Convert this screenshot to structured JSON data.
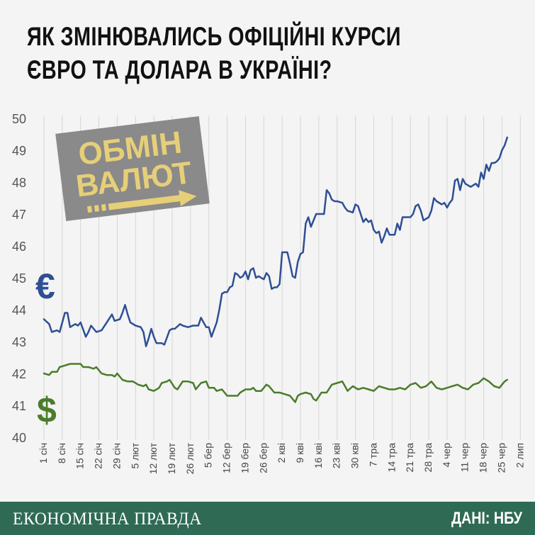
{
  "title": {
    "line1": "ЯК ЗМІНЮВАЛИСЬ ОФІЦІЙНІ КУРСИ",
    "line2": "ЄВРО ТА ДОЛАРА В УКРАЇНІ?"
  },
  "sign": {
    "line1": "ОБМІН",
    "line2": "ВАЛЮТ"
  },
  "footer": {
    "brand": "ЕКОНОМІЧНА ПРАВДА",
    "source": "ДАНІ: НБУ"
  },
  "colors": {
    "euro": "#2e4f94",
    "dollar": "#4a7c2a",
    "footer": "#2f6a55",
    "sign": "#8a8a8a",
    "sign_text": "#e6cf78"
  },
  "chart_data": {
    "type": "line",
    "title": "ЯК ЗМІНЮВАЛИСЬ ОФІЦІЙНІ КУРСИ ЄВРО ТА ДОЛАРА В УКРАЇНІ?",
    "xlabel": "",
    "ylabel": "",
    "ylim": [
      40,
      50
    ],
    "yticks": [
      40,
      41,
      42,
      43,
      44,
      45,
      46,
      47,
      48,
      49,
      50
    ],
    "grid": "vertical",
    "legend": "left (symbols € and $)",
    "x_tick_labels": [
      "1 січ",
      "8 січ",
      "15 січ",
      "22 січ",
      "29 січ",
      "5 лют",
      "12 лют",
      "19 лют",
      "26 лют",
      "5 бер",
      "12 бер",
      "19 бер",
      "26 бер",
      "2 кві",
      "9 кві",
      "16 кві",
      "23 кві",
      "30 кві",
      "7 тра",
      "14 тра",
      "21 тра",
      "28 тра",
      "4 чер",
      "11 чер",
      "18 чер",
      "25 чер",
      "2 лип"
    ],
    "x_day_range": [
      0,
      183
    ],
    "series": [
      {
        "name": "€",
        "points": [
          [
            0,
            43.7
          ],
          [
            2,
            43.55
          ],
          [
            3,
            43.3
          ],
          [
            5,
            43.35
          ],
          [
            6,
            43.3
          ],
          [
            8,
            43.9
          ],
          [
            9,
            43.9
          ],
          [
            10,
            43.45
          ],
          [
            12,
            43.55
          ],
          [
            13,
            43.5
          ],
          [
            14,
            43.6
          ],
          [
            16,
            43.15
          ],
          [
            17,
            43.3
          ],
          [
            18,
            43.5
          ],
          [
            20,
            43.3
          ],
          [
            22,
            43.35
          ],
          [
            24,
            43.6
          ],
          [
            26,
            43.85
          ],
          [
            27,
            43.65
          ],
          [
            29,
            43.7
          ],
          [
            30,
            43.9
          ],
          [
            31,
            44.15
          ],
          [
            32,
            43.85
          ],
          [
            33,
            43.6
          ],
          [
            35,
            43.5
          ],
          [
            37,
            43.45
          ],
          [
            38,
            43.3
          ],
          [
            39,
            42.85
          ],
          [
            40,
            43.1
          ],
          [
            41,
            43.4
          ],
          [
            42,
            43.15
          ],
          [
            43,
            42.95
          ],
          [
            45,
            42.95
          ],
          [
            46,
            42.9
          ],
          [
            48,
            43.35
          ],
          [
            49,
            43.4
          ],
          [
            50,
            43.4
          ],
          [
            52,
            43.55
          ],
          [
            53,
            43.5
          ],
          [
            55,
            43.45
          ],
          [
            57,
            43.5
          ],
          [
            59,
            43.5
          ],
          [
            60,
            43.75
          ],
          [
            62,
            43.45
          ],
          [
            63,
            43.45
          ],
          [
            64,
            43.15
          ],
          [
            66,
            43.6
          ],
          [
            67,
            44.0
          ],
          [
            68,
            44.5
          ],
          [
            69,
            44.55
          ],
          [
            70,
            44.55
          ],
          [
            71,
            44.7
          ],
          [
            72,
            44.75
          ],
          [
            73,
            45.15
          ],
          [
            74,
            45.1
          ],
          [
            75,
            45.0
          ],
          [
            76,
            45.05
          ],
          [
            77,
            45.2
          ],
          [
            78,
            44.95
          ],
          [
            79,
            45.25
          ],
          [
            80,
            45.3
          ],
          [
            81,
            45.0
          ],
          [
            82,
            45.05
          ],
          [
            84,
            44.95
          ],
          [
            85,
            45.15
          ],
          [
            86,
            45.05
          ],
          [
            87,
            44.65
          ],
          [
            88,
            44.7
          ],
          [
            89,
            44.7
          ],
          [
            90,
            44.8
          ],
          [
            91,
            45.8
          ],
          [
            92,
            45.8
          ],
          [
            93,
            45.8
          ],
          [
            94,
            45.45
          ],
          [
            95,
            45.05
          ],
          [
            96,
            45.0
          ],
          [
            97,
            45.5
          ],
          [
            98,
            45.75
          ],
          [
            99,
            45.8
          ],
          [
            100,
            46.7
          ],
          [
            101,
            46.9
          ],
          [
            102,
            46.6
          ],
          [
            103,
            46.8
          ],
          [
            104,
            47.0
          ],
          [
            106,
            47.0
          ],
          [
            107,
            47.0
          ],
          [
            108,
            47.75
          ],
          [
            109,
            47.65
          ],
          [
            110,
            47.45
          ],
          [
            111,
            47.4
          ],
          [
            112,
            47.4
          ],
          [
            114,
            47.35
          ],
          [
            115,
            47.2
          ],
          [
            116,
            47.1
          ],
          [
            118,
            47.05
          ],
          [
            119,
            47.3
          ],
          [
            120,
            47.25
          ],
          [
            121,
            47.0
          ],
          [
            122,
            46.75
          ],
          [
            123,
            46.85
          ],
          [
            124,
            46.75
          ],
          [
            125,
            46.8
          ],
          [
            126,
            46.5
          ],
          [
            127,
            46.4
          ],
          [
            128,
            46.45
          ],
          [
            129,
            46.1
          ],
          [
            130,
            46.3
          ],
          [
            131,
            46.55
          ],
          [
            132,
            46.35
          ],
          [
            134,
            46.35
          ],
          [
            135,
            46.7
          ],
          [
            136,
            46.5
          ],
          [
            137,
            46.9
          ],
          [
            138,
            46.9
          ],
          [
            140,
            46.9
          ],
          [
            141,
            47.0
          ],
          [
            142,
            47.25
          ],
          [
            143,
            47.3
          ],
          [
            144,
            47.1
          ],
          [
            145,
            46.8
          ],
          [
            147,
            46.9
          ],
          [
            148,
            47.1
          ],
          [
            149,
            47.5
          ],
          [
            150,
            47.4
          ],
          [
            152,
            47.3
          ],
          [
            153,
            47.35
          ],
          [
            154,
            47.2
          ],
          [
            155,
            47.35
          ],
          [
            156,
            47.45
          ],
          [
            157,
            48.05
          ],
          [
            158,
            48.1
          ],
          [
            159,
            47.75
          ],
          [
            160,
            48.1
          ],
          [
            161,
            47.95
          ],
          [
            163,
            47.85
          ],
          [
            165,
            47.95
          ],
          [
            166,
            47.85
          ],
          [
            167,
            48.3
          ],
          [
            168,
            48.1
          ],
          [
            169,
            48.55
          ],
          [
            170,
            48.35
          ],
          [
            171,
            48.6
          ],
          [
            172,
            48.6
          ],
          [
            173,
            48.65
          ],
          [
            174,
            48.75
          ],
          [
            175,
            49.0
          ],
          [
            176,
            49.15
          ],
          [
            177,
            49.4
          ]
        ]
      },
      {
        "name": "$",
        "points": [
          [
            0,
            42.0
          ],
          [
            2,
            41.95
          ],
          [
            3,
            42.05
          ],
          [
            5,
            42.05
          ],
          [
            6,
            42.2
          ],
          [
            8,
            42.25
          ],
          [
            10,
            42.3
          ],
          [
            12,
            42.3
          ],
          [
            14,
            42.3
          ],
          [
            15,
            42.2
          ],
          [
            17,
            42.2
          ],
          [
            19,
            42.15
          ],
          [
            20,
            42.2
          ],
          [
            22,
            42.0
          ],
          [
            24,
            41.95
          ],
          [
            26,
            41.95
          ],
          [
            27,
            41.9
          ],
          [
            28,
            42.0
          ],
          [
            30,
            41.8
          ],
          [
            32,
            41.75
          ],
          [
            34,
            41.75
          ],
          [
            36,
            41.65
          ],
          [
            38,
            41.6
          ],
          [
            39,
            41.65
          ],
          [
            40,
            41.5
          ],
          [
            42,
            41.45
          ],
          [
            44,
            41.55
          ],
          [
            45,
            41.7
          ],
          [
            47,
            41.75
          ],
          [
            48,
            41.8
          ],
          [
            50,
            41.55
          ],
          [
            51,
            41.5
          ],
          [
            53,
            41.75
          ],
          [
            55,
            41.75
          ],
          [
            57,
            41.7
          ],
          [
            58,
            41.5
          ],
          [
            60,
            41.7
          ],
          [
            62,
            41.75
          ],
          [
            63,
            41.55
          ],
          [
            65,
            41.55
          ],
          [
            66,
            41.45
          ],
          [
            68,
            41.5
          ],
          [
            69,
            41.4
          ],
          [
            70,
            41.3
          ],
          [
            72,
            41.3
          ],
          [
            74,
            41.3
          ],
          [
            75,
            41.4
          ],
          [
            77,
            41.5
          ],
          [
            79,
            41.5
          ],
          [
            80,
            41.55
          ],
          [
            81,
            41.45
          ],
          [
            83,
            41.45
          ],
          [
            85,
            41.65
          ],
          [
            86,
            41.6
          ],
          [
            88,
            41.4
          ],
          [
            90,
            41.4
          ],
          [
            92,
            41.35
          ],
          [
            94,
            41.3
          ],
          [
            95,
            41.2
          ],
          [
            96,
            41.1
          ],
          [
            97,
            41.3
          ],
          [
            98,
            41.35
          ],
          [
            100,
            41.4
          ],
          [
            102,
            41.35
          ],
          [
            103,
            41.2
          ],
          [
            104,
            41.15
          ],
          [
            106,
            41.4
          ],
          [
            108,
            41.4
          ],
          [
            110,
            41.65
          ],
          [
            112,
            41.7
          ],
          [
            114,
            41.75
          ],
          [
            115,
            41.6
          ],
          [
            116,
            41.45
          ],
          [
            118,
            41.6
          ],
          [
            120,
            41.5
          ],
          [
            122,
            41.55
          ],
          [
            124,
            41.5
          ],
          [
            126,
            41.45
          ],
          [
            128,
            41.6
          ],
          [
            130,
            41.55
          ],
          [
            132,
            41.5
          ],
          [
            134,
            41.5
          ],
          [
            136,
            41.55
          ],
          [
            138,
            41.5
          ],
          [
            140,
            41.65
          ],
          [
            142,
            41.7
          ],
          [
            144,
            41.55
          ],
          [
            146,
            41.6
          ],
          [
            148,
            41.75
          ],
          [
            150,
            41.55
          ],
          [
            152,
            41.5
          ],
          [
            154,
            41.55
          ],
          [
            156,
            41.6
          ],
          [
            158,
            41.65
          ],
          [
            160,
            41.55
          ],
          [
            162,
            41.5
          ],
          [
            164,
            41.65
          ],
          [
            166,
            41.7
          ],
          [
            168,
            41.85
          ],
          [
            170,
            41.75
          ],
          [
            172,
            41.6
          ],
          [
            174,
            41.55
          ],
          [
            176,
            41.75
          ],
          [
            177,
            41.8
          ]
        ]
      }
    ]
  }
}
